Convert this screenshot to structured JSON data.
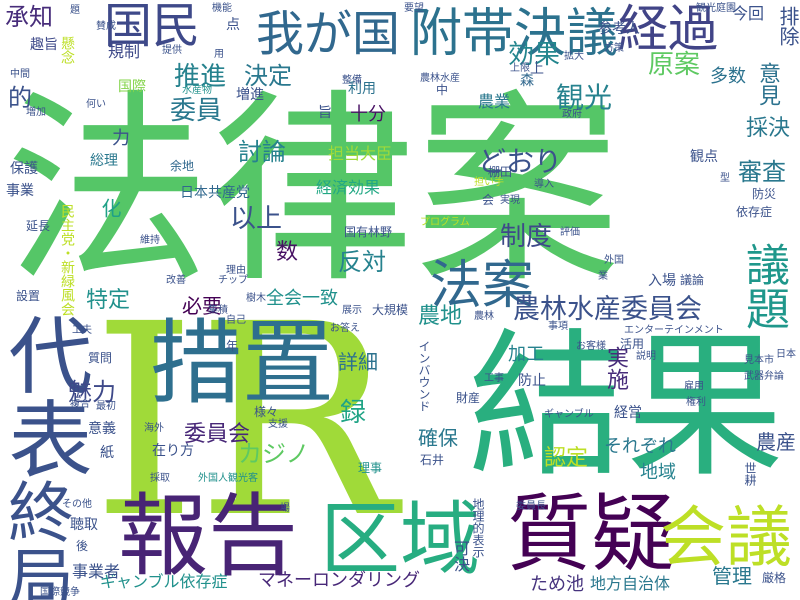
{
  "words": [
    {
      "text": "法律案",
      "color": "#55c667",
      "vertical": false
    },
    {
      "text": "IR",
      "color": "#a0da39",
      "vertical": false
    },
    {
      "text": "結果",
      "color": "#29af7f",
      "vertical": false
    },
    {
      "text": "措置",
      "color": "#2e6f8e",
      "vertical": false
    },
    {
      "text": "報告",
      "color": "#482475",
      "vertical": false
    },
    {
      "text": "区域",
      "color": "#27ad81",
      "vertical": false
    },
    {
      "text": "質疑",
      "color": "#440154",
      "vertical": false
    },
    {
      "text": "会議",
      "color": "#bddf26",
      "vertical": false
    },
    {
      "text": "代表",
      "color": "#3b528b",
      "vertical": true
    },
    {
      "text": "終局",
      "color": "#3b528b",
      "vertical": true
    },
    {
      "text": "附帯決議",
      "color": "#2c728e",
      "vertical": false
    },
    {
      "text": "経過",
      "color": "#414487",
      "vertical": false
    },
    {
      "text": "国民",
      "color": "#3e4989",
      "vertical": false
    },
    {
      "text": "我が国",
      "color": "#31688e",
      "vertical": false
    },
    {
      "text": "法案",
      "color": "#31688e",
      "vertical": false
    },
    {
      "text": "議題",
      "color": "#1f978b",
      "vertical": true
    },
    {
      "text": "農林水産委員会",
      "color": "#3b528b",
      "vertical": false
    },
    {
      "text": "承知",
      "color": "#472c7a",
      "vertical": false
    },
    {
      "text": "観光",
      "color": "#26828e",
      "vertical": false
    },
    {
      "text": "原案",
      "color": "#5ec962",
      "vertical": false
    },
    {
      "text": "効果",
      "color": "#24868e",
      "vertical": false
    },
    {
      "text": "推進",
      "color": "#26828e",
      "vertical": false
    },
    {
      "text": "決定",
      "color": "#2a788e",
      "vertical": false
    },
    {
      "text": "委員",
      "color": "#2a788e",
      "vertical": false
    },
    {
      "text": "討論",
      "color": "#26828e",
      "vertical": false
    },
    {
      "text": "どおり",
      "color": "#3b528b",
      "vertical": false
    },
    {
      "text": "以上",
      "color": "#3b528b",
      "vertical": false
    },
    {
      "text": "反対",
      "color": "#26828e",
      "vertical": false
    },
    {
      "text": "制度",
      "color": "#3e4989",
      "vertical": false
    },
    {
      "text": "特定",
      "color": "#21918c",
      "vertical": false
    },
    {
      "text": "必要",
      "color": "#440154",
      "vertical": false
    },
    {
      "text": "審査",
      "color": "#2a788e",
      "vertical": false
    },
    {
      "text": "採決",
      "color": "#2a788e",
      "vertical": false
    },
    {
      "text": "意見",
      "color": "#2c728e",
      "vertical": true
    },
    {
      "text": "的",
      "color": "#3b528b",
      "vertical": false
    },
    {
      "text": "数",
      "color": "#471063",
      "vertical": false
    },
    {
      "text": "化",
      "color": "#1fa187",
      "vertical": true
    },
    {
      "text": "カジノ",
      "color": "#5ec962",
      "vertical": false
    },
    {
      "text": "委員会",
      "color": "#482878",
      "vertical": false
    },
    {
      "text": "詳細",
      "color": "#2c728e",
      "vertical": false
    },
    {
      "text": "魅力",
      "color": "#3e4989",
      "vertical": false
    },
    {
      "text": "録",
      "color": "#20a486",
      "vertical": false
    },
    {
      "text": "農地",
      "color": "#21918c",
      "vertical": false
    },
    {
      "text": "認定",
      "color": "#bddf26",
      "vertical": false
    },
    {
      "text": "管理",
      "color": "#2a788e",
      "vertical": false
    },
    {
      "text": "農産",
      "color": "#3b528b",
      "vertical": false
    },
    {
      "text": "地域",
      "color": "#26828e",
      "vertical": false
    },
    {
      "text": "マネーロンダリング",
      "color": "#482878",
      "vertical": false
    },
    {
      "text": "ギャンブル依存症",
      "color": "#21918c",
      "vertical": false
    },
    {
      "text": "ため池",
      "color": "#46337e",
      "vertical": false
    },
    {
      "text": "地方自治体",
      "color": "#2a788e",
      "vertical": false
    },
    {
      "text": "事業者",
      "color": "#3b528b",
      "vertical": false
    },
    {
      "text": "確保",
      "color": "#2a788e",
      "vertical": false
    },
    {
      "text": "それぞれ",
      "color": "#2a788e",
      "vertical": false
    },
    {
      "text": "加工",
      "color": "#26828e",
      "vertical": false
    },
    {
      "text": "実施",
      "color": "#472c7a",
      "vertical": true
    },
    {
      "text": "全会一致",
      "color": "#21918c",
      "vertical": false
    },
    {
      "text": "日本共産党",
      "color": "#31688e",
      "vertical": false
    },
    {
      "text": "担当大臣",
      "color": "#9fda3a",
      "vertical": false
    },
    {
      "text": "経済効果",
      "color": "#22a884",
      "vertical": false
    },
    {
      "text": "国有林野",
      "color": "#3b528b",
      "vertical": false
    },
    {
      "text": "十分",
      "color": "#471063",
      "vertical": false
    },
    {
      "text": "農業",
      "color": "#2a788e",
      "vertical": false
    },
    {
      "text": "多数",
      "color": "#2c728e",
      "vertical": false
    },
    {
      "text": "今回",
      "color": "#3b528b",
      "vertical": false
    },
    {
      "text": "参考人",
      "color": "#3b528b",
      "vertical": false
    },
    {
      "text": "規制",
      "color": "#3e4989",
      "vertical": false
    },
    {
      "text": "趣旨",
      "color": "#3e4989",
      "vertical": false
    },
    {
      "text": "事業",
      "color": "#3b528b",
      "vertical": false
    },
    {
      "text": "保護",
      "color": "#3b528b",
      "vertical": false
    },
    {
      "text": "延長",
      "color": "#3b528b",
      "vertical": false
    },
    {
      "text": "総理",
      "color": "#2a788e",
      "vertical": false
    },
    {
      "text": "余地",
      "color": "#31688e",
      "vertical": false
    },
    {
      "text": "国際",
      "color": "#84d44b",
      "vertical": false
    },
    {
      "text": "増進",
      "color": "#3b528b",
      "vertical": false
    },
    {
      "text": "水産物",
      "color": "#21918c",
      "vertical": false
    },
    {
      "text": "利用",
      "color": "#2c728e",
      "vertical": false
    },
    {
      "text": "森",
      "color": "#31688e",
      "vertical": false
    },
    {
      "text": "観点",
      "color": "#3b528b",
      "vertical": false
    },
    {
      "text": "防災",
      "color": "#3b528b",
      "vertical": false
    },
    {
      "text": "依存症",
      "color": "#3b528b",
      "vertical": false
    },
    {
      "text": "樹木",
      "color": "#3b528b",
      "vertical": false
    },
    {
      "text": "集積",
      "color": "#3b528b",
      "vertical": false
    },
    {
      "text": "改善",
      "color": "#3b528b",
      "vertical": false
    },
    {
      "text": "維持",
      "color": "#3b528b",
      "vertical": false
    },
    {
      "text": "理由",
      "color": "#3b528b",
      "vertical": false
    },
    {
      "text": "設置",
      "color": "#3b528b",
      "vertical": false
    },
    {
      "text": "質問",
      "color": "#3b528b",
      "vertical": false
    },
    {
      "text": "様々",
      "color": "#3b528b",
      "vertical": false
    },
    {
      "text": "支援",
      "color": "#3b528b",
      "vertical": false
    },
    {
      "text": "在り方",
      "color": "#3b528b",
      "vertical": false
    },
    {
      "text": "理事",
      "color": "#21918c",
      "vertical": false
    },
    {
      "text": "防止",
      "color": "#3b528b",
      "vertical": false
    },
    {
      "text": "工事",
      "color": "#3b528b",
      "vertical": false
    },
    {
      "text": "事項",
      "color": "#3b528b",
      "vertical": false
    },
    {
      "text": "活用",
      "color": "#3b528b",
      "vertical": false
    },
    {
      "text": "説明",
      "color": "#3b528b",
      "vertical": false
    },
    {
      "text": "経営",
      "color": "#3b528b",
      "vertical": false
    },
    {
      "text": "入場",
      "color": "#3b528b",
      "vertical": false
    },
    {
      "text": "議論",
      "color": "#3b528b",
      "vertical": false
    },
    {
      "text": "評価",
      "color": "#3b528b",
      "vertical": false
    },
    {
      "text": "石井",
      "color": "#3b528b",
      "vertical": false
    },
    {
      "text": "可決",
      "color": "#3b528b",
      "vertical": true
    },
    {
      "text": "地理的表示",
      "color": "#3b528b",
      "vertical": true
    },
    {
      "text": "インバウンド",
      "color": "#3b528b",
      "vertical": true
    },
    {
      "text": "外国人観光客",
      "color": "#21918c",
      "vertical": false
    },
    {
      "text": "エンターテインメント",
      "color": "#3b528b",
      "vertical": false
    },
    {
      "text": "厳格",
      "color": "#3b528b",
      "vertical": false
    },
    {
      "text": "民主党・新緑風会",
      "color": "#bddf26",
      "vertical": true
    },
    {
      "text": "世耕",
      "color": "#3b528b",
      "vertical": true
    },
    {
      "text": "意義",
      "color": "#3b528b",
      "vertical": false
    },
    {
      "text": "紙",
      "color": "#3b528b",
      "vertical": false
    },
    {
      "text": "採取",
      "color": "#3b528b",
      "vertical": false
    },
    {
      "text": "聴取",
      "color": "#3b528b",
      "vertical": false
    },
    {
      "text": "その他",
      "color": "#3b528b",
      "vertical": false
    },
    {
      "text": "後",
      "color": "#3b528b",
      "vertical": false
    },
    {
      "text": "中",
      "color": "#3b528b",
      "vertical": false
    },
    {
      "text": "増加",
      "color": "#3b528b",
      "vertical": false
    },
    {
      "text": "何い",
      "color": "#3b528b",
      "vertical": false
    },
    {
      "text": "中間",
      "color": "#3b528b",
      "vertical": false
    },
    {
      "text": "題",
      "color": "#3b528b",
      "vertical": false
    },
    {
      "text": "懸念",
      "color": "#bddf26",
      "vertical": true
    },
    {
      "text": "要望",
      "color": "#3b528b",
      "vertical": false
    },
    {
      "text": "点",
      "color": "#3b528b",
      "vertical": false
    },
    {
      "text": "旨",
      "color": "#3b528b",
      "vertical": false
    },
    {
      "text": "力",
      "color": "#3b528b",
      "vertical": false
    },
    {
      "text": "年",
      "color": "#3b528b",
      "vertical": false
    },
    {
      "text": "場",
      "color": "#3b528b",
      "vertical": false
    },
    {
      "text": "展示",
      "color": "#3b528b",
      "vertical": false
    },
    {
      "text": "大規模",
      "color": "#3b528b",
      "vertical": false
    },
    {
      "text": "お答え",
      "color": "#3b528b",
      "vertical": false
    },
    {
      "text": "担い手",
      "color": "#bddf26",
      "vertical": false
    },
    {
      "text": "プログラム",
      "color": "#bddf26",
      "vertical": false
    },
    {
      "text": "財産",
      "color": "#3b528b",
      "vertical": false
    },
    {
      "text": "国際競争",
      "color": "#3b528b",
      "vertical": false
    },
    {
      "text": "ギャンブル",
      "color": "#3b528b",
      "vertical": false
    },
    {
      "text": "日本",
      "color": "#3b528b",
      "vertical": false
    },
    {
      "text": "見本市",
      "color": "#3b528b",
      "vertical": false
    },
    {
      "text": "武器弁論",
      "color": "#3b528b",
      "vertical": false
    },
    {
      "text": "雇用",
      "color": "#3b528b",
      "vertical": false
    },
    {
      "text": "権利",
      "color": "#3b528b",
      "vertical": false
    },
    {
      "text": "排除",
      "color": "#3b528b",
      "vertical": true
    },
    {
      "text": "観光庭園",
      "color": "#3b528b",
      "vertical": false
    },
    {
      "text": "農林水産",
      "color": "#3b528b",
      "vertical": false
    },
    {
      "text": "上限",
      "color": "#3b528b",
      "vertical": false
    },
    {
      "text": "上",
      "color": "#3b528b",
      "vertical": false
    },
    {
      "text": "方策",
      "color": "#3b528b",
      "vertical": false
    },
    {
      "text": "拡大",
      "color": "#3b528b",
      "vertical": false
    },
    {
      "text": "政府",
      "color": "#3b528b",
      "vertical": false
    },
    {
      "text": "導入",
      "color": "#3b528b",
      "vertical": false
    },
    {
      "text": "実現",
      "color": "#3b528b",
      "vertical": false
    },
    {
      "text": "業",
      "color": "#3b528b",
      "vertical": false
    },
    {
      "text": "外国",
      "color": "#3b528b",
      "vertical": false
    },
    {
      "text": "チップ",
      "color": "#3b528b",
      "vertical": false
    },
    {
      "text": "自己",
      "color": "#3b528b",
      "vertical": false
    },
    {
      "text": "工夫",
      "color": "#3b528b",
      "vertical": false
    },
    {
      "text": "複合",
      "color": "#3b528b",
      "vertical": false
    },
    {
      "text": "最初",
      "color": "#3b528b",
      "vertical": false
    },
    {
      "text": "海外",
      "color": "#3b528b",
      "vertical": false
    },
    {
      "text": "委員長",
      "color": "#3b528b",
      "vertical": false
    },
    {
      "text": "お客様",
      "color": "#3b528b",
      "vertical": false
    },
    {
      "text": "農林",
      "color": "#3b528b",
      "vertical": false
    },
    {
      "text": "提供",
      "color": "#3b528b",
      "vertical": false
    },
    {
      "text": "用",
      "color": "#3b528b",
      "vertical": false
    },
    {
      "text": "整備",
      "color": "#3b528b",
      "vertical": false
    },
    {
      "text": "機能",
      "color": "#3b528b",
      "vertical": false
    },
    {
      "text": "賛成",
      "color": "#3b528b",
      "vertical": false
    },
    {
      "text": "棚田",
      "color": "#3b528b",
      "vertical": false
    },
    {
      "text": "会",
      "color": "#3b528b",
      "vertical": false
    },
    {
      "text": "型",
      "color": "#3b528b",
      "vertical": false
    }
  ]
}
